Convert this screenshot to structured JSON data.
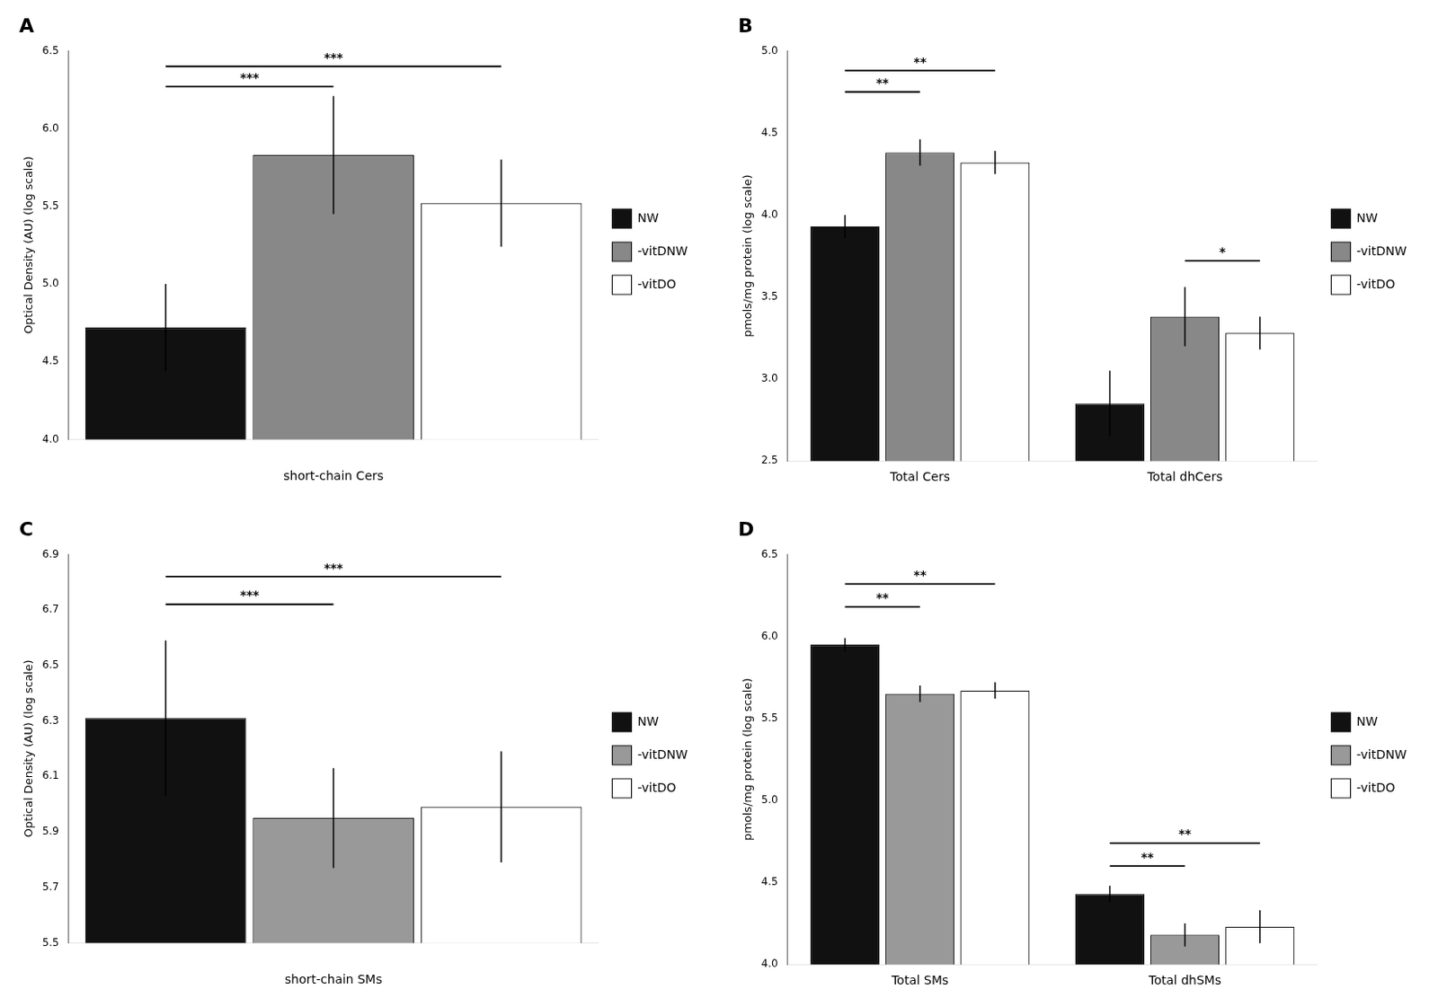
{
  "chart_data": [
    {
      "type": "bar",
      "title": "A",
      "xlabel": "short-chain Cers",
      "ylabel": "Optical Density (AU) (log scale)",
      "categories": [
        null
      ],
      "series": [
        {
          "name": "NW",
          "color": "#111111",
          "values": [
            4.72
          ],
          "errors": [
            0.28
          ]
        },
        {
          "name": "-vitDNW",
          "color": "#888888",
          "values": [
            5.83
          ],
          "errors": [
            0.38
          ]
        },
        {
          "name": "-vitDO",
          "color": "#ffffff",
          "values": [
            5.52
          ],
          "errors": [
            0.28
          ]
        }
      ],
      "ylim": [
        4.0,
        6.5
      ],
      "yticks": [
        {
          "value": 4.0,
          "label": "4.0"
        },
        4.5,
        {
          "value": 5.0,
          "label": "5.0"
        },
        5.5,
        {
          "value": 6.0,
          "label": "6.0"
        },
        6.5
      ],
      "grid": false,
      "legend": "right",
      "annotations": [
        {
          "text": "***",
          "y": 6.27,
          "from": "NW",
          "to": "-vitDNW"
        },
        {
          "text": "***",
          "y": 6.4,
          "from": "NW",
          "to": "-vitDO"
        }
      ]
    },
    {
      "type": "bar",
      "title": "B",
      "ylabel": "pmols/mg protein (log scale)",
      "categories": [
        "Total Cers",
        "Total dhCers"
      ],
      "series": [
        {
          "name": "NW",
          "color": "#111111",
          "values": [
            3.93,
            2.85
          ],
          "errors": [
            0.07,
            0.2
          ]
        },
        {
          "name": "-vitDNW",
          "color": "#888888",
          "values": [
            4.38,
            3.38
          ],
          "errors": [
            0.08,
            0.18
          ]
        },
        {
          "name": "-vitDO",
          "color": "#ffffff",
          "values": [
            4.32,
            3.28
          ],
          "errors": [
            0.07,
            0.1
          ]
        }
      ],
      "ylim": [
        2.5,
        5.0
      ],
      "yticks": [
        2.5,
        {
          "value": 3.0,
          "label": "3.0"
        },
        3.5,
        {
          "value": 4.0,
          "label": "4.0"
        },
        4.5,
        {
          "value": 5.0,
          "label": "5.0"
        }
      ],
      "grid": false,
      "legend": "right",
      "annotations": [
        {
          "text": "**",
          "y": 4.75,
          "category": "Total Cers",
          "from": "NW",
          "to": "-vitDNW"
        },
        {
          "text": "**",
          "y": 4.88,
          "category": "Total Cers",
          "from": "NW",
          "to": "-vitDO"
        },
        {
          "text": "*",
          "y": 3.72,
          "category": "Total dhCers",
          "from": "-vitDNW",
          "to": "-vitDO"
        }
      ]
    },
    {
      "type": "bar",
      "title": "C",
      "xlabel": "short-chain SMs",
      "ylabel": "Optical Density (AU) (log scale)",
      "categories": [
        null
      ],
      "series": [
        {
          "name": "NW",
          "color": "#111111",
          "values": [
            6.31
          ],
          "errors": [
            0.28
          ]
        },
        {
          "name": "-vitDNW",
          "color": "#999999",
          "values": [
            5.95
          ],
          "errors": [
            0.18
          ]
        },
        {
          "name": "-vitDO",
          "color": "#ffffff",
          "values": [
            5.99
          ],
          "errors": [
            0.2
          ]
        }
      ],
      "ylim": [
        5.5,
        6.9
      ],
      "yticks": [
        5.5,
        5.7,
        5.9,
        6.1,
        6.3,
        6.5,
        6.7,
        6.9
      ],
      "grid": false,
      "legend": "right",
      "annotations": [
        {
          "text": "***",
          "y": 6.72,
          "from": "NW",
          "to": "-vitDNW"
        },
        {
          "text": "***",
          "y": 6.82,
          "from": "NW",
          "to": "-vitDO"
        }
      ]
    },
    {
      "type": "bar",
      "title": "D",
      "ylabel": "pmols/mg protein (log scale)",
      "categories": [
        "Total SMs",
        "Total dhSMs"
      ],
      "series": [
        {
          "name": "NW",
          "color": "#111111",
          "values": [
            5.95,
            4.43
          ],
          "errors": [
            0.04,
            0.05
          ]
        },
        {
          "name": "-vitDNW",
          "color": "#999999",
          "values": [
            5.65,
            4.18
          ],
          "errors": [
            0.05,
            0.07
          ]
        },
        {
          "name": "-vitDO",
          "color": "#ffffff",
          "values": [
            5.67,
            4.23
          ],
          "errors": [
            0.05,
            0.1
          ]
        }
      ],
      "ylim": [
        4.0,
        6.5
      ],
      "yticks": [
        {
          "value": 4.0,
          "label": "4.0"
        },
        4.5,
        {
          "value": 5.0,
          "label": "5.0"
        },
        5.5,
        {
          "value": 6.0,
          "label": "6.0"
        },
        6.5
      ],
      "grid": false,
      "legend": "right",
      "annotations": [
        {
          "text": "**",
          "y": 6.18,
          "category": "Total SMs",
          "from": "NW",
          "to": "-vitDNW"
        },
        {
          "text": "**",
          "y": 6.32,
          "category": "Total SMs",
          "from": "NW",
          "to": "-vitDO"
        },
        {
          "text": "**",
          "y": 4.6,
          "category": "Total dhSMs",
          "from": "NW",
          "to": "-vitDNW"
        },
        {
          "text": "**",
          "y": 4.74,
          "category": "Total dhSMs",
          "from": "NW",
          "to": "-vitDO"
        }
      ]
    }
  ]
}
